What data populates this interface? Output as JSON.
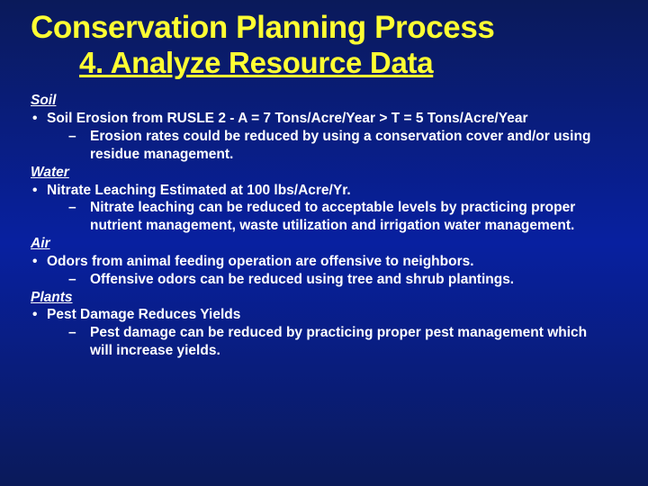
{
  "colors": {
    "title_color": "#ffff33",
    "body_color": "#ffffff",
    "bg_gradient_top": "#0a1a5a",
    "bg_gradient_mid": "#0820a0",
    "bg_gradient_bottom": "#0a1a5a"
  },
  "typography": {
    "title_fontsize_pt": 26,
    "subtitle_fontsize_pt": 25,
    "body_fontsize_pt": 12,
    "font_family": "Arial",
    "font_weight": "bold"
  },
  "title": {
    "line1": "Conservation Planning Process",
    "line2": "4. Analyze Resource Data"
  },
  "sections": [
    {
      "heading": "Soil",
      "bullet": "Soil Erosion from RUSLE 2 - A = 7 Tons/Acre/Year > T = 5 Tons/Acre/Year",
      "sub": "Erosion rates could be reduced by using a conservation cover and/or using residue management."
    },
    {
      "heading": "Water",
      "bullet": "Nitrate Leaching Estimated at 100 lbs/Acre/Yr.",
      "sub": "Nitrate leaching can be reduced to acceptable levels by practicing proper nutrient management, waste utilization and irrigation water management."
    },
    {
      "heading": "Air",
      "bullet": "Odors from animal feeding operation are offensive to neighbors.",
      "sub": "Offensive odors can be reduced using tree and shrub plantings."
    },
    {
      "heading": "Plants",
      "bullet": "Pest Damage Reduces Yields",
      "sub": "Pest damage can be reduced by practicing proper pest management which will increase yields."
    }
  ],
  "marks": {
    "bullet": "•",
    "dash": "–"
  }
}
